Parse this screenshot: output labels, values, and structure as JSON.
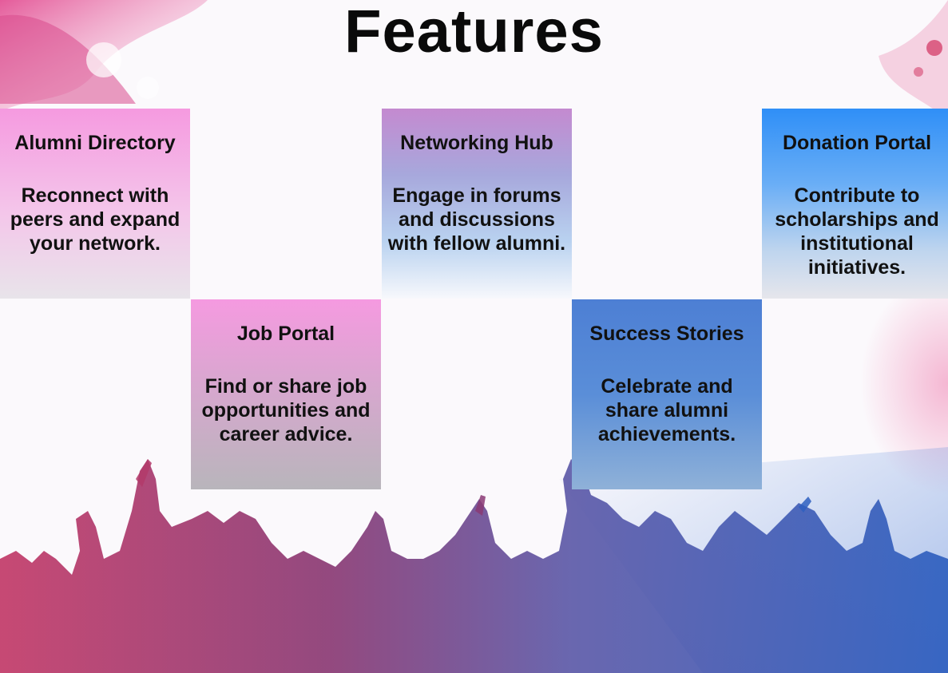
{
  "slide": {
    "title": "Features"
  },
  "cards": [
    {
      "heading": "Alumni Directory",
      "body": "Reconnect with peers and expand your network."
    },
    {
      "heading": "Job Portal",
      "body": "Find or share job opportunities and career advice."
    },
    {
      "heading": "Networking Hub",
      "body": "Engage in forums and discussions with fellow alumni."
    },
    {
      "heading": "Success Stories",
      "body": "Celebrate and share alumni achievements."
    },
    {
      "heading": "Donation Portal",
      "body": "Contribute to scholarships and institutional initiatives."
    }
  ],
  "colors": {
    "pink": "#f59ae0",
    "blue": "#2f8ff7",
    "crowd_left": "#b0305e",
    "crowd_right": "#2a4fa8"
  }
}
